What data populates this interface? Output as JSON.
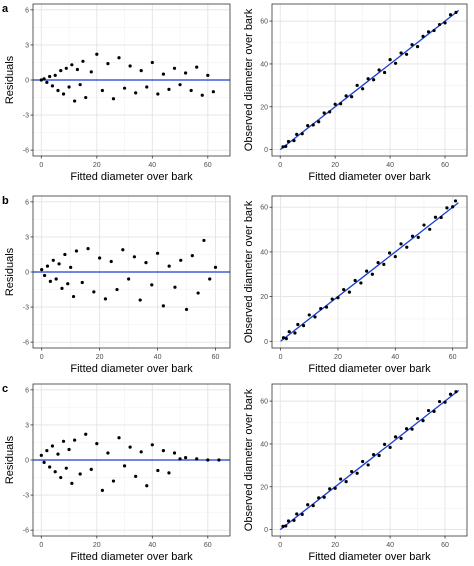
{
  "figure": {
    "rows": [
      {
        "label": "a",
        "residual": {
          "ylabel": "Residuals",
          "xlabel": "Fitted diameter over bark",
          "xlim": [
            -3,
            68
          ],
          "ylim": [
            -6.5,
            6.5
          ],
          "xticks": [
            0,
            20,
            40,
            60
          ],
          "yticks": [
            -6,
            -3,
            0,
            3,
            6
          ]
        },
        "observed": {
          "ylabel": "Observed diameter over bark",
          "xlabel": "Fitted diameter over bark",
          "xlim": [
            -3,
            68
          ],
          "ylim": [
            -3,
            68
          ],
          "xticks": [
            0,
            20,
            40,
            60
          ],
          "yticks": [
            0,
            20,
            40,
            60
          ]
        }
      },
      {
        "label": "b",
        "residual": {
          "ylabel": "Residuals",
          "xlabel": "Fitted diameter over bark",
          "xlim": [
            -3,
            65
          ],
          "ylim": [
            -6.5,
            6.5
          ],
          "xticks": [
            0,
            20,
            40,
            60
          ],
          "yticks": [
            -6,
            -3,
            0,
            3,
            6
          ]
        },
        "observed": {
          "ylabel": "Observed diameter over bark",
          "xlabel": "Fitted diameter over bark",
          "xlim": [
            -3,
            65
          ],
          "ylim": [
            -3,
            65
          ],
          "xticks": [
            0,
            20,
            40,
            60
          ],
          "yticks": [
            0,
            20,
            40,
            60
          ]
        }
      },
      {
        "label": "c",
        "residual": {
          "ylabel": "Residuals",
          "xlabel": "Fitted diameter over bark",
          "xlim": [
            -3,
            68
          ],
          "ylim": [
            -6.5,
            6.5
          ],
          "xticks": [
            0,
            20,
            40,
            60
          ],
          "yticks": [
            -6,
            -3,
            0,
            3,
            6
          ]
        },
        "observed": {
          "ylabel": "Observed diameter over bark",
          "xlabel": "Fitted diameter over bark",
          "xlim": [
            -3,
            68
          ],
          "ylim": [
            -3,
            68
          ],
          "xticks": [
            0,
            20,
            40,
            60
          ],
          "yticks": [
            0,
            20,
            40,
            60
          ]
        }
      }
    ]
  },
  "colors": {
    "point": "#000000",
    "fit_line": "#1a3fd0",
    "grid_major": "#e3e3e3",
    "grid_minor": "#f1f1f1",
    "axis_text": "#4d4d4d",
    "border": "#333333"
  },
  "chart_data": [
    {
      "type": "scatter",
      "panel": "a-left",
      "series": [
        {
          "x": [
            0,
            1,
            2,
            3,
            4,
            5,
            6,
            7,
            8,
            9,
            10,
            11,
            12,
            13,
            14,
            15,
            16,
            18,
            20,
            22,
            24,
            26,
            28,
            30,
            32,
            34,
            36,
            38,
            40,
            42,
            44,
            46,
            48,
            50,
            52,
            54,
            56,
            58,
            60,
            62
          ],
          "y": [
            0,
            0.1,
            -0.2,
            0.3,
            -0.5,
            0.4,
            -0.9,
            0.8,
            -1.2,
            1.0,
            -0.6,
            1.3,
            -1.8,
            0.9,
            -0.4,
            1.6,
            -1.5,
            0.7,
            2.2,
            -0.9,
            1.4,
            -1.6,
            1.9,
            -0.7,
            1.2,
            -1.1,
            0.8,
            -0.6,
            1.5,
            -1.2,
            0.5,
            -0.8,
            1.0,
            -0.4,
            0.6,
            -0.9,
            1.1,
            -1.3,
            0.4,
            -1.0
          ]
        }
      ],
      "fit": {
        "type": "hline",
        "y": 0
      }
    },
    {
      "type": "scatter",
      "panel": "a-right",
      "series": [
        {
          "x": [
            1,
            2,
            3,
            5,
            6,
            8,
            10,
            12,
            14,
            16,
            18,
            20,
            22,
            24,
            26,
            28,
            30,
            32,
            34,
            36,
            38,
            40,
            42,
            44,
            46,
            48,
            50,
            52,
            54,
            56,
            58,
            60,
            62,
            64
          ],
          "y": [
            1.3,
            1.5,
            3.8,
            4.2,
            7.1,
            7.4,
            11.2,
            11.5,
            13.0,
            17.1,
            17.6,
            21.2,
            21.4,
            25.1,
            24.7,
            30.0,
            28.4,
            33.1,
            32.6,
            37.2,
            36.0,
            42.0,
            40.3,
            45.1,
            44.5,
            49.0,
            48.1,
            52.9,
            55.0,
            55.6,
            58.4,
            59.2,
            63.0,
            64.1
          ]
        }
      ],
      "fit": {
        "type": "line",
        "x": [
          0,
          65
        ],
        "y": [
          0,
          65
        ]
      }
    },
    {
      "type": "scatter",
      "panel": "b-left",
      "series": [
        {
          "x": [
            0,
            1,
            2,
            3,
            4,
            5,
            6,
            7,
            8,
            9,
            10,
            11,
            12,
            14,
            16,
            18,
            20,
            22,
            24,
            26,
            28,
            30,
            32,
            34,
            36,
            38,
            40,
            42,
            44,
            46,
            48,
            50,
            52,
            54,
            56,
            58,
            60
          ],
          "y": [
            0.2,
            -0.3,
            0.5,
            -0.8,
            1.0,
            -0.6,
            0.7,
            -1.4,
            1.5,
            -1.0,
            0.4,
            -2.1,
            1.8,
            -0.9,
            2.0,
            -1.7,
            1.2,
            -2.3,
            0.9,
            -1.5,
            1.9,
            -0.6,
            1.3,
            -2.4,
            0.8,
            -1.1,
            1.6,
            -2.9,
            0.5,
            -1.3,
            1.0,
            -3.2,
            1.4,
            -1.8,
            2.7,
            -0.6,
            0.4
          ]
        }
      ],
      "fit": {
        "type": "hline",
        "y": 0
      }
    },
    {
      "type": "scatter",
      "panel": "b-right",
      "series": [
        {
          "x": [
            1,
            2,
            3,
            5,
            6,
            8,
            10,
            12,
            14,
            16,
            18,
            20,
            22,
            24,
            26,
            28,
            30,
            32,
            34,
            36,
            38,
            40,
            42,
            44,
            46,
            48,
            50,
            52,
            54,
            56,
            58,
            60,
            61
          ],
          "y": [
            1.6,
            1.2,
            4.3,
            3.7,
            7.5,
            7.0,
            11.8,
            10.9,
            14.6,
            15.3,
            18.9,
            19.5,
            23.1,
            22.0,
            27.2,
            26.1,
            31.4,
            30.0,
            35.2,
            34.4,
            39.5,
            37.9,
            43.6,
            42.1,
            47.0,
            46.5,
            52.0,
            50.1,
            55.5,
            55.4,
            59.7,
            60.2,
            62.8
          ]
        }
      ],
      "fit": {
        "type": "line",
        "x": [
          0,
          62
        ],
        "y": [
          0,
          62
        ]
      }
    },
    {
      "type": "scatter",
      "panel": "c-left",
      "series": [
        {
          "x": [
            0,
            1,
            2,
            3,
            4,
            5,
            6,
            7,
            8,
            9,
            10,
            11,
            12,
            14,
            16,
            18,
            20,
            22,
            24,
            26,
            28,
            30,
            32,
            34,
            36,
            38,
            40,
            42,
            44,
            46,
            48,
            50,
            52,
            56,
            60,
            64
          ],
          "y": [
            0.4,
            -0.2,
            0.8,
            -0.6,
            1.2,
            -1.0,
            0.5,
            -1.5,
            1.6,
            -0.7,
            0.9,
            -2.0,
            1.7,
            -1.2,
            2.2,
            -0.8,
            1.4,
            -2.6,
            0.6,
            -1.8,
            1.9,
            -0.5,
            1.1,
            -1.4,
            0.7,
            -2.2,
            1.3,
            -0.9,
            0.8,
            -1.1,
            0.6,
            0.1,
            0.2,
            0.1,
            0.0,
            0.0
          ]
        }
      ],
      "fit": {
        "type": "hline",
        "y": 0
      }
    },
    {
      "type": "scatter",
      "panel": "c-right",
      "series": [
        {
          "x": [
            1,
            2,
            3,
            5,
            6,
            8,
            10,
            12,
            14,
            16,
            18,
            20,
            22,
            24,
            26,
            28,
            30,
            32,
            34,
            36,
            38,
            40,
            42,
            44,
            46,
            48,
            50,
            52,
            54,
            56,
            58,
            60,
            62,
            64
          ],
          "y": [
            1.5,
            1.7,
            4.0,
            4.3,
            7.3,
            7.1,
            11.6,
            11.2,
            14.8,
            15.1,
            19.0,
            19.3,
            23.6,
            22.4,
            27.1,
            26.3,
            31.8,
            30.2,
            35.0,
            34.6,
            39.8,
            38.4,
            43.3,
            42.6,
            47.1,
            46.9,
            51.8,
            50.9,
            55.6,
            55.2,
            59.8,
            59.5,
            63.2,
            64.4
          ]
        }
      ],
      "fit": {
        "type": "line",
        "x": [
          0,
          65
        ],
        "y": [
          0,
          65
        ]
      }
    }
  ]
}
